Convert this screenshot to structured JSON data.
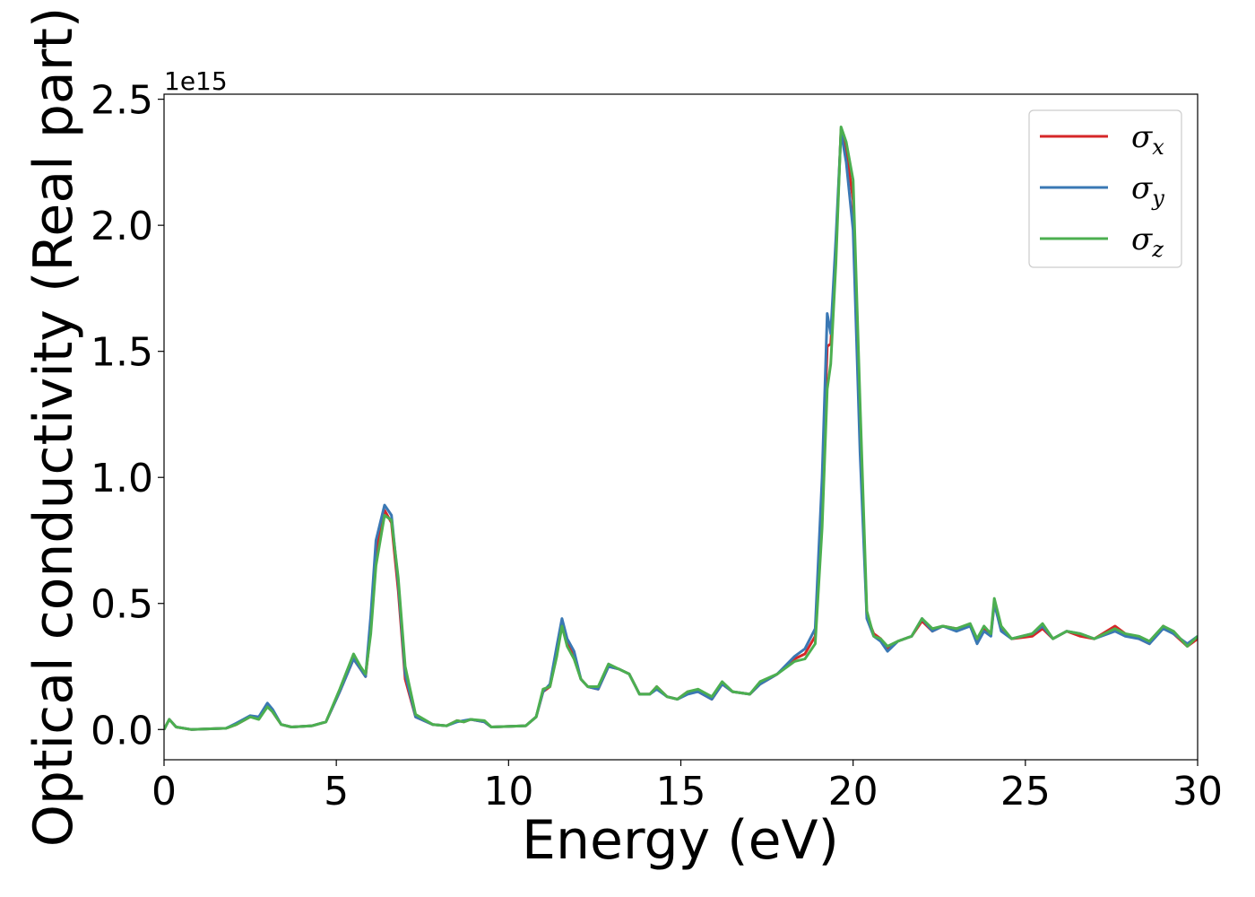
{
  "chart_data": {
    "type": "line",
    "xlabel": "Energy (eV)",
    "ylabel": "Optical conductivity (Real part)",
    "y_offset_label": "1e15",
    "xlim": [
      0,
      30
    ],
    "ylim": [
      -0.12,
      2.52
    ],
    "x_ticks": [
      0,
      5,
      10,
      15,
      20,
      25,
      30
    ],
    "x_tick_labels": [
      "0",
      "5",
      "10",
      "15",
      "20",
      "25",
      "30"
    ],
    "y_ticks": [
      0.0,
      0.5,
      1.0,
      1.5,
      2.0,
      2.5
    ],
    "y_tick_labels": [
      "0.0",
      "0.5",
      "1.0",
      "1.5",
      "2.0",
      "2.5"
    ],
    "grid": false,
    "legend_position": "top-right",
    "legend": [
      {
        "symbol": "σ",
        "sub": "x",
        "color": "#d62728"
      },
      {
        "symbol": "σ",
        "sub": "y",
        "color": "#3a78b4"
      },
      {
        "symbol": "σ",
        "sub": "z",
        "color": "#4caf50"
      }
    ],
    "series": [
      {
        "name": "σx",
        "color": "#d62728",
        "points": [
          [
            0,
            0.0
          ],
          [
            0.15,
            0.04
          ],
          [
            0.35,
            0.01
          ],
          [
            0.8,
            0.0
          ],
          [
            1.8,
            0.005
          ],
          [
            2.1,
            0.02
          ],
          [
            2.5,
            0.05
          ],
          [
            2.75,
            0.045
          ],
          [
            3.0,
            0.095
          ],
          [
            3.15,
            0.07
          ],
          [
            3.4,
            0.02
          ],
          [
            3.7,
            0.01
          ],
          [
            4.3,
            0.015
          ],
          [
            4.7,
            0.03
          ],
          [
            5.1,
            0.15
          ],
          [
            5.5,
            0.28
          ],
          [
            5.7,
            0.24
          ],
          [
            5.85,
            0.21
          ],
          [
            6.0,
            0.4
          ],
          [
            6.15,
            0.7
          ],
          [
            6.4,
            0.87
          ],
          [
            6.6,
            0.82
          ],
          [
            6.8,
            0.55
          ],
          [
            7.0,
            0.2
          ],
          [
            7.3,
            0.05
          ],
          [
            7.8,
            0.02
          ],
          [
            8.2,
            0.015
          ],
          [
            8.5,
            0.035
          ],
          [
            8.7,
            0.03
          ],
          [
            8.9,
            0.04
          ],
          [
            9.3,
            0.03
          ],
          [
            9.5,
            0.01
          ],
          [
            10.5,
            0.015
          ],
          [
            10.8,
            0.05
          ],
          [
            11.0,
            0.15
          ],
          [
            11.2,
            0.17
          ],
          [
            11.4,
            0.3
          ],
          [
            11.55,
            0.42
          ],
          [
            11.7,
            0.34
          ],
          [
            11.9,
            0.29
          ],
          [
            12.1,
            0.2
          ],
          [
            12.3,
            0.17
          ],
          [
            12.6,
            0.16
          ],
          [
            12.9,
            0.25
          ],
          [
            13.2,
            0.24
          ],
          [
            13.5,
            0.22
          ],
          [
            13.8,
            0.14
          ],
          [
            14.1,
            0.14
          ],
          [
            14.3,
            0.17
          ],
          [
            14.6,
            0.13
          ],
          [
            14.9,
            0.12
          ],
          [
            15.2,
            0.15
          ],
          [
            15.5,
            0.15
          ],
          [
            15.9,
            0.12
          ],
          [
            16.2,
            0.18
          ],
          [
            16.5,
            0.15
          ],
          [
            17.0,
            0.14
          ],
          [
            17.3,
            0.18
          ],
          [
            17.8,
            0.22
          ],
          [
            18.3,
            0.28
          ],
          [
            18.6,
            0.3
          ],
          [
            18.9,
            0.37
          ],
          [
            19.1,
            0.9
          ],
          [
            19.25,
            1.52
          ],
          [
            19.35,
            1.53
          ],
          [
            19.5,
            1.9
          ],
          [
            19.65,
            2.38
          ],
          [
            19.8,
            2.3
          ],
          [
            20.0,
            2.1
          ],
          [
            20.2,
            1.2
          ],
          [
            20.4,
            0.45
          ],
          [
            20.6,
            0.38
          ],
          [
            20.8,
            0.36
          ],
          [
            21.0,
            0.32
          ],
          [
            21.3,
            0.35
          ],
          [
            21.7,
            0.37
          ],
          [
            22.0,
            0.43
          ],
          [
            22.3,
            0.39
          ],
          [
            22.6,
            0.41
          ],
          [
            23.0,
            0.4
          ],
          [
            23.4,
            0.41
          ],
          [
            23.6,
            0.35
          ],
          [
            23.8,
            0.4
          ],
          [
            24.0,
            0.38
          ],
          [
            24.1,
            0.5
          ],
          [
            24.3,
            0.4
          ],
          [
            24.6,
            0.36
          ],
          [
            25.2,
            0.37
          ],
          [
            25.5,
            0.4
          ],
          [
            25.8,
            0.36
          ],
          [
            26.2,
            0.39
          ],
          [
            26.6,
            0.37
          ],
          [
            27.0,
            0.36
          ],
          [
            27.6,
            0.41
          ],
          [
            27.9,
            0.38
          ],
          [
            28.3,
            0.36
          ],
          [
            28.6,
            0.34
          ],
          [
            29.0,
            0.41
          ],
          [
            29.3,
            0.38
          ],
          [
            29.7,
            0.33
          ],
          [
            30,
            0.36
          ]
        ]
      },
      {
        "name": "σy",
        "color": "#3a78b4",
        "points": [
          [
            0,
            0.0
          ],
          [
            0.15,
            0.04
          ],
          [
            0.35,
            0.01
          ],
          [
            0.8,
            0.0
          ],
          [
            1.8,
            0.005
          ],
          [
            2.1,
            0.025
          ],
          [
            2.5,
            0.055
          ],
          [
            2.75,
            0.05
          ],
          [
            3.0,
            0.105
          ],
          [
            3.15,
            0.08
          ],
          [
            3.4,
            0.02
          ],
          [
            3.7,
            0.01
          ],
          [
            4.3,
            0.015
          ],
          [
            4.7,
            0.03
          ],
          [
            5.1,
            0.15
          ],
          [
            5.5,
            0.28
          ],
          [
            5.7,
            0.24
          ],
          [
            5.85,
            0.21
          ],
          [
            6.0,
            0.45
          ],
          [
            6.15,
            0.75
          ],
          [
            6.4,
            0.89
          ],
          [
            6.6,
            0.85
          ],
          [
            6.8,
            0.58
          ],
          [
            7.0,
            0.22
          ],
          [
            7.3,
            0.05
          ],
          [
            7.8,
            0.02
          ],
          [
            8.2,
            0.015
          ],
          [
            8.5,
            0.03
          ],
          [
            8.7,
            0.035
          ],
          [
            8.9,
            0.04
          ],
          [
            9.3,
            0.03
          ],
          [
            9.5,
            0.01
          ],
          [
            10.5,
            0.015
          ],
          [
            10.8,
            0.05
          ],
          [
            11.0,
            0.15
          ],
          [
            11.2,
            0.18
          ],
          [
            11.4,
            0.33
          ],
          [
            11.55,
            0.44
          ],
          [
            11.7,
            0.36
          ],
          [
            11.9,
            0.31
          ],
          [
            12.1,
            0.2
          ],
          [
            12.3,
            0.17
          ],
          [
            12.6,
            0.16
          ],
          [
            12.9,
            0.25
          ],
          [
            13.2,
            0.24
          ],
          [
            13.5,
            0.22
          ],
          [
            13.8,
            0.14
          ],
          [
            14.1,
            0.14
          ],
          [
            14.3,
            0.16
          ],
          [
            14.6,
            0.13
          ],
          [
            14.9,
            0.12
          ],
          [
            15.2,
            0.14
          ],
          [
            15.5,
            0.15
          ],
          [
            15.9,
            0.12
          ],
          [
            16.2,
            0.18
          ],
          [
            16.5,
            0.15
          ],
          [
            17.0,
            0.14
          ],
          [
            17.3,
            0.18
          ],
          [
            17.8,
            0.22
          ],
          [
            18.3,
            0.29
          ],
          [
            18.6,
            0.32
          ],
          [
            18.9,
            0.4
          ],
          [
            19.1,
            1.0
          ],
          [
            19.25,
            1.65
          ],
          [
            19.35,
            1.57
          ],
          [
            19.5,
            1.95
          ],
          [
            19.65,
            2.37
          ],
          [
            19.8,
            2.25
          ],
          [
            20.0,
            1.98
          ],
          [
            20.2,
            1.1
          ],
          [
            20.4,
            0.44
          ],
          [
            20.6,
            0.37
          ],
          [
            20.8,
            0.35
          ],
          [
            21.0,
            0.31
          ],
          [
            21.3,
            0.35
          ],
          [
            21.7,
            0.37
          ],
          [
            22.0,
            0.44
          ],
          [
            22.3,
            0.39
          ],
          [
            22.6,
            0.41
          ],
          [
            23.0,
            0.39
          ],
          [
            23.4,
            0.41
          ],
          [
            23.6,
            0.34
          ],
          [
            23.8,
            0.39
          ],
          [
            24.0,
            0.37
          ],
          [
            24.1,
            0.5
          ],
          [
            24.3,
            0.39
          ],
          [
            24.6,
            0.36
          ],
          [
            25.2,
            0.38
          ],
          [
            25.5,
            0.41
          ],
          [
            25.8,
            0.36
          ],
          [
            26.2,
            0.39
          ],
          [
            26.6,
            0.38
          ],
          [
            27.0,
            0.36
          ],
          [
            27.6,
            0.39
          ],
          [
            27.9,
            0.37
          ],
          [
            28.3,
            0.36
          ],
          [
            28.6,
            0.34
          ],
          [
            29.0,
            0.4
          ],
          [
            29.3,
            0.38
          ],
          [
            29.7,
            0.34
          ],
          [
            30,
            0.37
          ]
        ]
      },
      {
        "name": "σz",
        "color": "#4caf50",
        "points": [
          [
            0,
            0.0
          ],
          [
            0.15,
            0.04
          ],
          [
            0.35,
            0.01
          ],
          [
            0.8,
            0.0
          ],
          [
            1.8,
            0.005
          ],
          [
            2.1,
            0.02
          ],
          [
            2.5,
            0.05
          ],
          [
            2.75,
            0.04
          ],
          [
            3.0,
            0.09
          ],
          [
            3.15,
            0.07
          ],
          [
            3.4,
            0.02
          ],
          [
            3.7,
            0.01
          ],
          [
            4.3,
            0.015
          ],
          [
            4.7,
            0.03
          ],
          [
            5.1,
            0.16
          ],
          [
            5.5,
            0.3
          ],
          [
            5.7,
            0.25
          ],
          [
            5.85,
            0.22
          ],
          [
            6.0,
            0.38
          ],
          [
            6.15,
            0.65
          ],
          [
            6.4,
            0.85
          ],
          [
            6.6,
            0.83
          ],
          [
            6.8,
            0.6
          ],
          [
            7.0,
            0.25
          ],
          [
            7.3,
            0.06
          ],
          [
            7.8,
            0.02
          ],
          [
            8.2,
            0.015
          ],
          [
            8.5,
            0.035
          ],
          [
            8.7,
            0.03
          ],
          [
            8.9,
            0.04
          ],
          [
            9.3,
            0.035
          ],
          [
            9.5,
            0.01
          ],
          [
            10.5,
            0.015
          ],
          [
            10.8,
            0.05
          ],
          [
            11.0,
            0.16
          ],
          [
            11.2,
            0.17
          ],
          [
            11.4,
            0.29
          ],
          [
            11.55,
            0.41
          ],
          [
            11.7,
            0.33
          ],
          [
            11.9,
            0.28
          ],
          [
            12.1,
            0.2
          ],
          [
            12.3,
            0.17
          ],
          [
            12.6,
            0.17
          ],
          [
            12.9,
            0.26
          ],
          [
            13.2,
            0.24
          ],
          [
            13.5,
            0.22
          ],
          [
            13.8,
            0.14
          ],
          [
            14.1,
            0.14
          ],
          [
            14.3,
            0.17
          ],
          [
            14.6,
            0.13
          ],
          [
            14.9,
            0.12
          ],
          [
            15.2,
            0.15
          ],
          [
            15.5,
            0.16
          ],
          [
            15.9,
            0.13
          ],
          [
            16.2,
            0.19
          ],
          [
            16.5,
            0.15
          ],
          [
            17.0,
            0.14
          ],
          [
            17.3,
            0.19
          ],
          [
            17.8,
            0.22
          ],
          [
            18.3,
            0.27
          ],
          [
            18.6,
            0.28
          ],
          [
            18.9,
            0.34
          ],
          [
            19.1,
            0.8
          ],
          [
            19.25,
            1.35
          ],
          [
            19.35,
            1.45
          ],
          [
            19.5,
            1.85
          ],
          [
            19.65,
            2.39
          ],
          [
            19.8,
            2.33
          ],
          [
            20.0,
            2.18
          ],
          [
            20.2,
            1.3
          ],
          [
            20.4,
            0.47
          ],
          [
            20.6,
            0.37
          ],
          [
            20.8,
            0.36
          ],
          [
            21.0,
            0.33
          ],
          [
            21.3,
            0.35
          ],
          [
            21.7,
            0.37
          ],
          [
            22.0,
            0.44
          ],
          [
            22.3,
            0.4
          ],
          [
            22.6,
            0.41
          ],
          [
            23.0,
            0.4
          ],
          [
            23.4,
            0.42
          ],
          [
            23.6,
            0.36
          ],
          [
            23.8,
            0.41
          ],
          [
            24.0,
            0.38
          ],
          [
            24.1,
            0.52
          ],
          [
            24.3,
            0.41
          ],
          [
            24.6,
            0.36
          ],
          [
            25.2,
            0.38
          ],
          [
            25.5,
            0.42
          ],
          [
            25.8,
            0.36
          ],
          [
            26.2,
            0.39
          ],
          [
            26.6,
            0.38
          ],
          [
            27.0,
            0.36
          ],
          [
            27.6,
            0.4
          ],
          [
            27.9,
            0.38
          ],
          [
            28.3,
            0.37
          ],
          [
            28.6,
            0.35
          ],
          [
            29.0,
            0.41
          ],
          [
            29.3,
            0.39
          ],
          [
            29.7,
            0.33
          ],
          [
            30,
            0.37
          ]
        ]
      }
    ]
  }
}
